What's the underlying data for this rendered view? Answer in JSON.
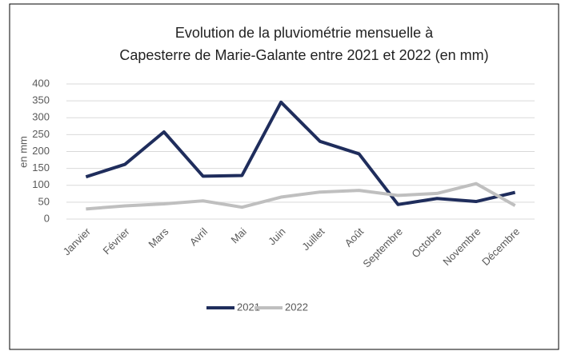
{
  "chart_data": {
    "type": "line",
    "title": [
      "Evolution de la pluviométrie mensuelle à",
      "Capesterre de Marie-Galante entre 2021 et 2022 (en mm)"
    ],
    "y_label": "en mm",
    "categories": [
      "Janvier",
      "Février",
      "Mars",
      "Avril",
      "Mai",
      "Juin",
      "Juillet",
      "Août",
      "Septembre",
      "Octobre",
      "Novembre",
      "Décembre"
    ],
    "series": [
      {
        "name": "2021",
        "color": "#1f2d5c",
        "values": [
          125,
          162,
          258,
          127,
          129,
          346,
          230,
          193,
          43,
          61,
          52,
          79
        ]
      },
      {
        "name": "2022",
        "color": "#bfbfbf",
        "values": [
          30,
          39,
          45,
          54,
          35,
          65,
          80,
          85,
          70,
          76,
          105,
          40
        ]
      }
    ],
    "ylim": [
      0,
      400
    ],
    "yticks": [
      0,
      50,
      100,
      150,
      200,
      250,
      300,
      350,
      400
    ],
    "grid": true,
    "legend": "bottom"
  }
}
